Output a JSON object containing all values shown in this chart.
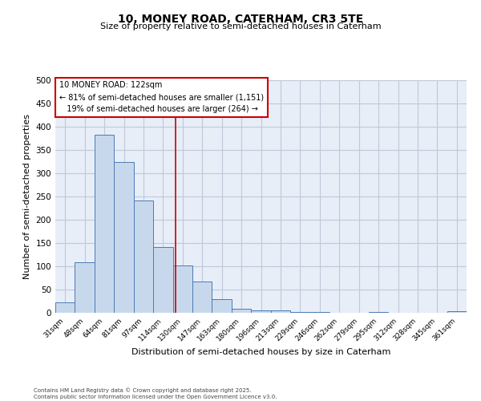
{
  "title1": "10, MONEY ROAD, CATERHAM, CR3 5TE",
  "title2": "Size of property relative to semi-detached houses in Caterham",
  "xlabel": "Distribution of semi-detached houses by size in Caterham",
  "ylabel": "Number of semi-detached properties",
  "categories": [
    "31sqm",
    "48sqm",
    "64sqm",
    "81sqm",
    "97sqm",
    "114sqm",
    "130sqm",
    "147sqm",
    "163sqm",
    "180sqm",
    "196sqm",
    "213sqm",
    "229sqm",
    "246sqm",
    "262sqm",
    "279sqm",
    "295sqm",
    "312sqm",
    "328sqm",
    "345sqm",
    "361sqm"
  ],
  "values": [
    22,
    108,
    382,
    325,
    241,
    141,
    102,
    68,
    30,
    9,
    5,
    5,
    1,
    1,
    0,
    0,
    2,
    0,
    0,
    0,
    3
  ],
  "bar_color": "#c8d8ec",
  "bar_edge_color": "#4a7ab5",
  "grid_color": "#c0c8d8",
  "bg_color": "#e8eef8",
  "property_line_x": 5.645,
  "annotation_text": "10 MONEY ROAD: 122sqm\n← 81% of semi-detached houses are smaller (1,151)\n   19% of semi-detached houses are larger (264) →",
  "annotation_box_color": "#cc0000",
  "ylim": [
    0,
    500
  ],
  "yticks": [
    0,
    50,
    100,
    150,
    200,
    250,
    300,
    350,
    400,
    450,
    500
  ],
  "footer": "Contains HM Land Registry data © Crown copyright and database right 2025.\nContains public sector information licensed under the Open Government Licence v3.0.",
  "red_line_color": "#cc0000"
}
